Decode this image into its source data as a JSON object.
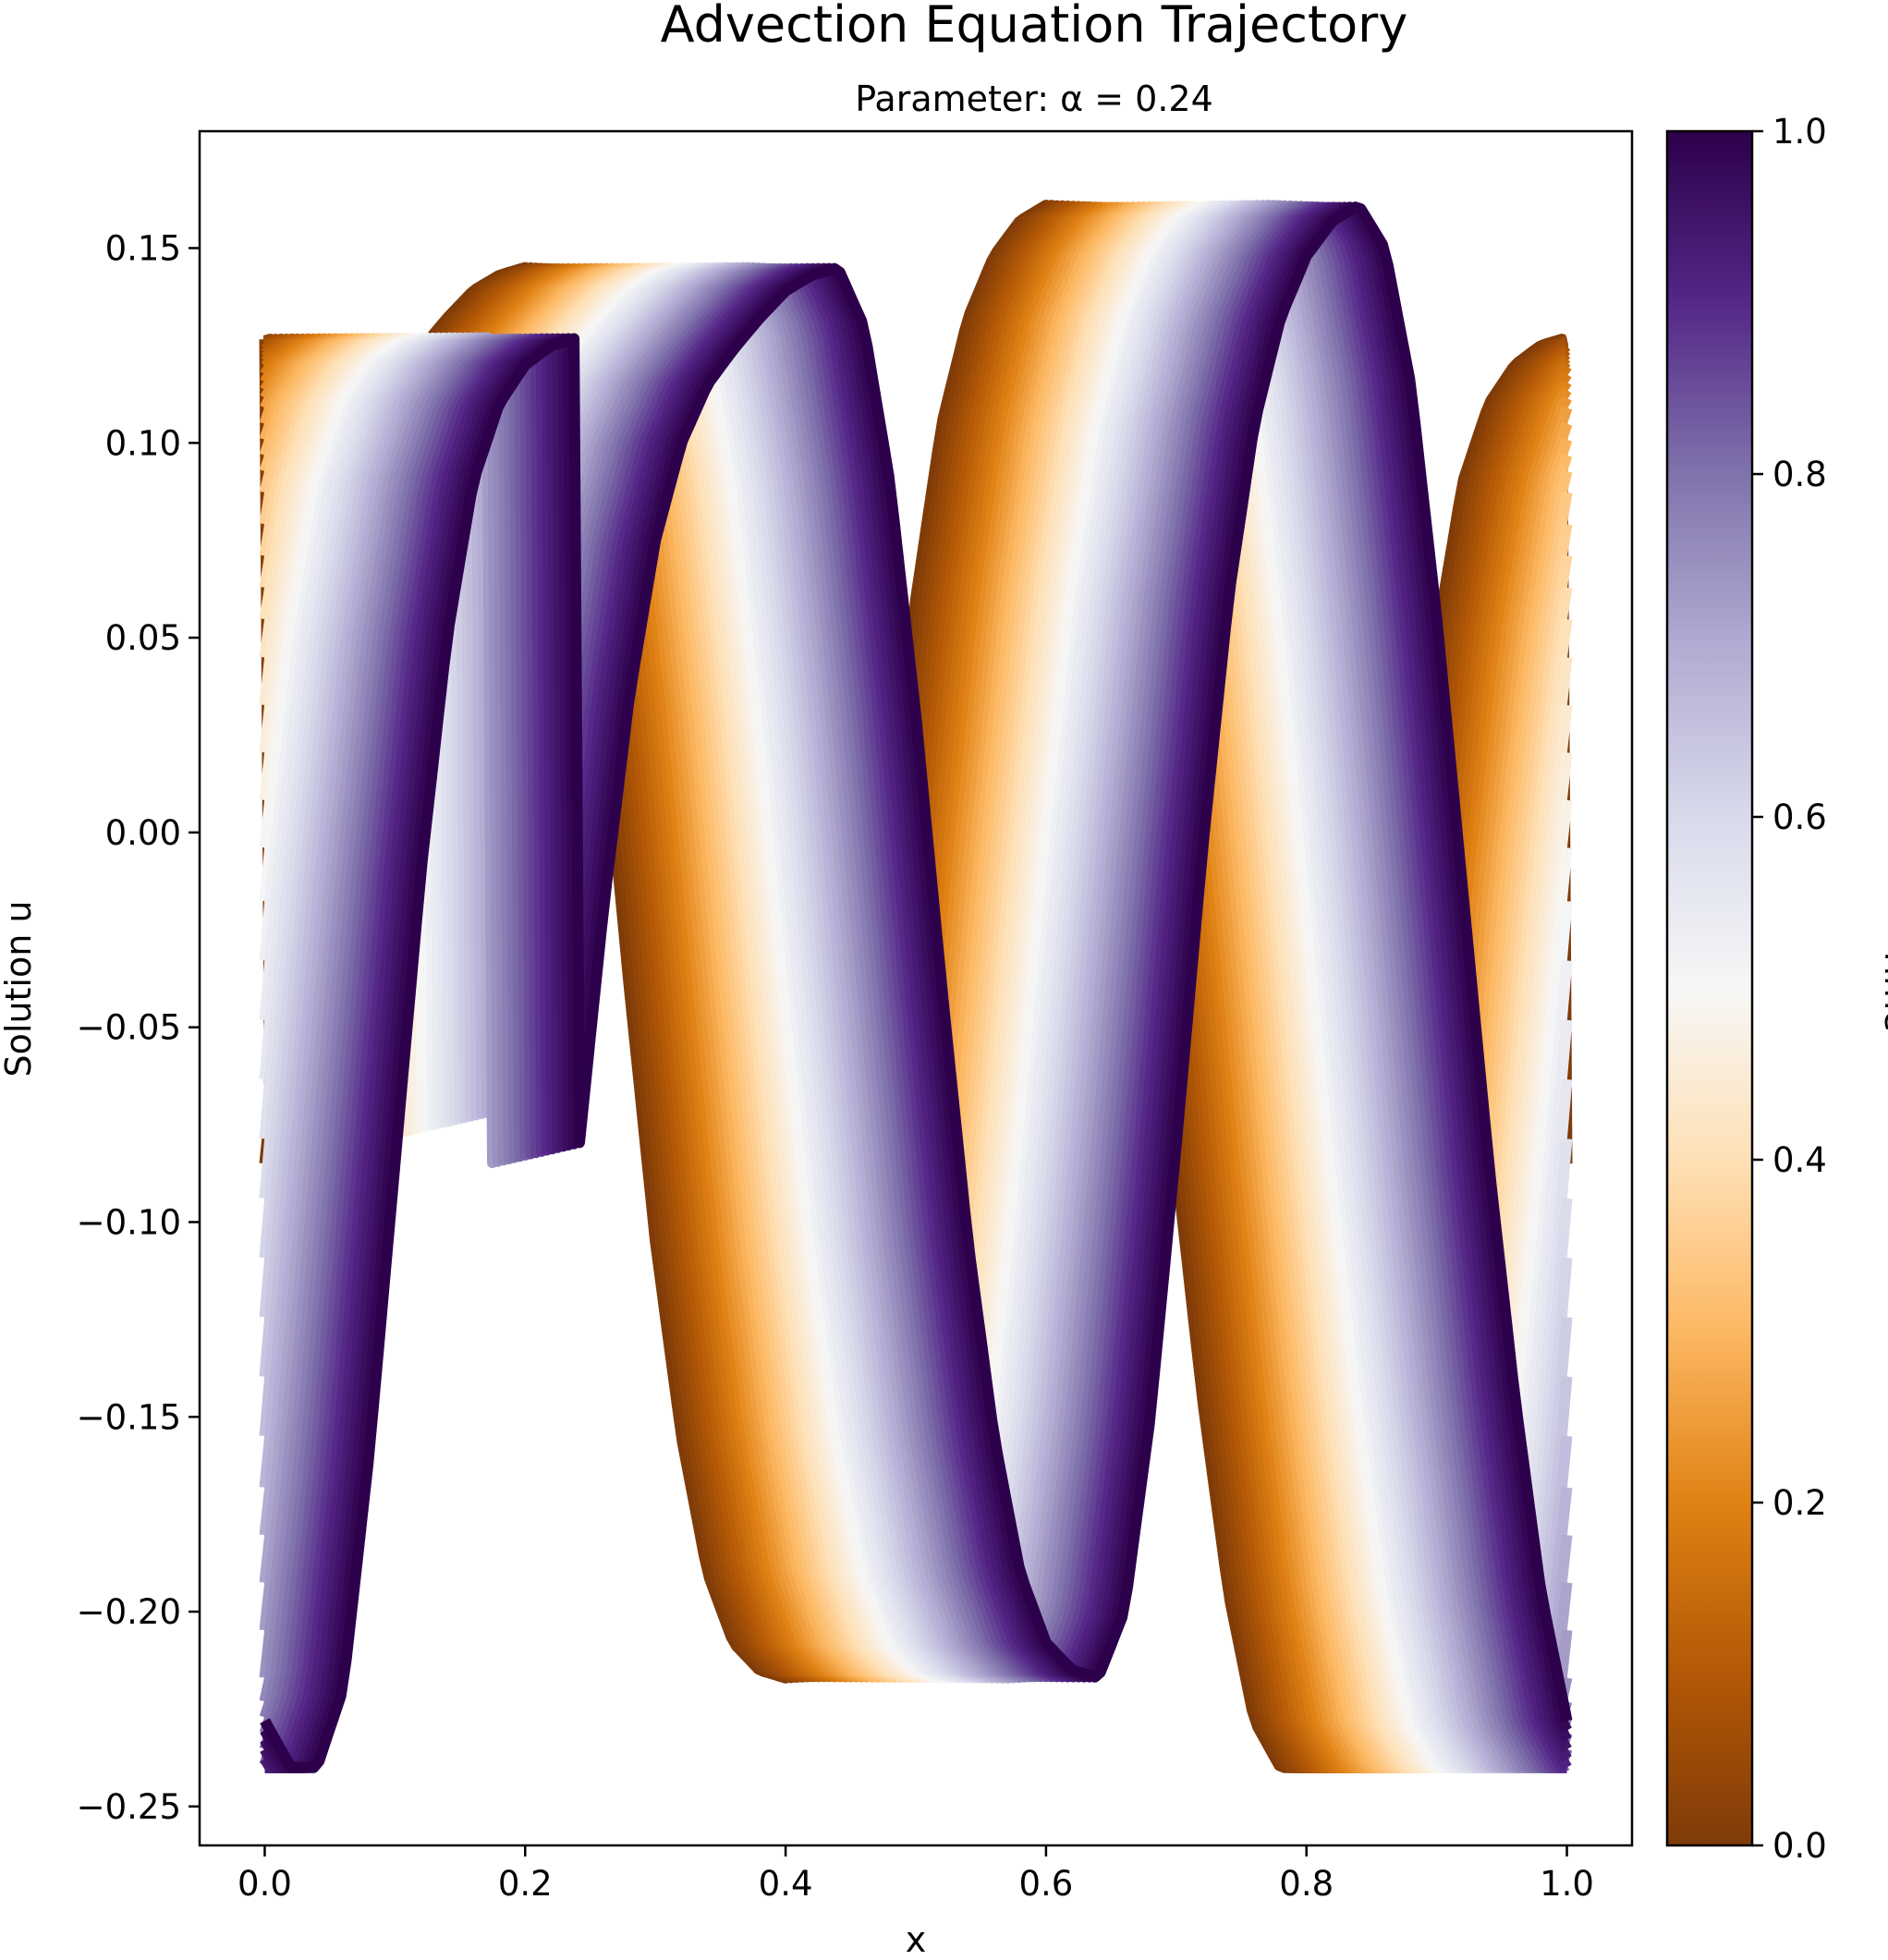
{
  "chart_data": {
    "type": "line",
    "title": "Advection Equation Trajectory",
    "subtitle": "Parameter: α = 0.24",
    "xlabel": "x",
    "ylabel": "Solution u",
    "xlim": [
      -0.05,
      1.05
    ],
    "ylim": [
      -0.26,
      0.18
    ],
    "xticks": [
      0.0,
      0.2,
      0.4,
      0.6,
      0.8,
      1.0
    ],
    "xtick_labels": [
      "0.0",
      "0.2",
      "0.4",
      "0.6",
      "0.8",
      "1.0"
    ],
    "yticks": [
      0.15,
      0.1,
      0.05,
      0.0,
      -0.05,
      -0.1,
      -0.15,
      -0.2,
      -0.25
    ],
    "ytick_labels": [
      "0.15",
      "0.10",
      "0.05",
      "0.00",
      "−0.05",
      "−0.10",
      "−0.15",
      "−0.20",
      "−0.25"
    ],
    "colorbar": {
      "label": "Time",
      "range": [
        0.0,
        1.0
      ],
      "ticks": [
        0.0,
        0.2,
        0.4,
        0.6,
        0.8,
        1.0
      ],
      "tick_labels": [
        "0.0",
        "0.2",
        "0.4",
        "0.6",
        "0.8",
        "1.0"
      ],
      "colormap": "PuOr",
      "colors": [
        "#7f3b08",
        "#b35806",
        "#e08214",
        "#fdb863",
        "#fee0b6",
        "#f7f7f7",
        "#d8daeb",
        "#b2abd2",
        "#8073ac",
        "#542788",
        "#2d004b"
      ]
    },
    "grid": false,
    "n_time_steps": 60,
    "initial_profile": {
      "x": [
        0.0,
        0.02,
        0.04,
        0.06,
        0.08,
        0.1,
        0.12,
        0.14,
        0.16,
        0.18,
        0.2,
        0.22,
        0.24,
        0.26,
        0.28,
        0.3,
        0.32,
        0.34,
        0.36,
        0.38,
        0.4,
        0.42,
        0.44,
        0.46,
        0.48,
        0.5,
        0.52,
        0.54,
        0.56,
        0.58,
        0.6,
        0.62,
        0.64,
        0.66,
        0.68,
        0.7,
        0.72,
        0.74,
        0.76,
        0.78,
        0.8,
        0.82,
        0.84,
        0.86,
        0.88,
        0.9,
        0.92,
        0.94,
        0.96,
        0.98,
        1.0
      ],
      "u": [
        -0.085,
        -0.02,
        0.035,
        0.075,
        0.1,
        0.115,
        0.124,
        0.132,
        0.139,
        0.143,
        0.145,
        0.13,
        0.09,
        0.03,
        -0.04,
        -0.105,
        -0.155,
        -0.19,
        -0.208,
        -0.215,
        -0.217,
        -0.2,
        -0.15,
        -0.08,
        -0.005,
        0.06,
        0.105,
        0.132,
        0.148,
        0.157,
        0.161,
        0.15,
        0.115,
        0.055,
        -0.015,
        -0.085,
        -0.145,
        -0.195,
        -0.228,
        -0.24,
        -0.24,
        -0.22,
        -0.16,
        -0.085,
        -0.01,
        0.05,
        0.09,
        0.11,
        0.12,
        0.125,
        0.127
      ]
    },
    "advection_speed": 0.24,
    "clip_range": [
      -0.242,
      0.162
    ]
  }
}
